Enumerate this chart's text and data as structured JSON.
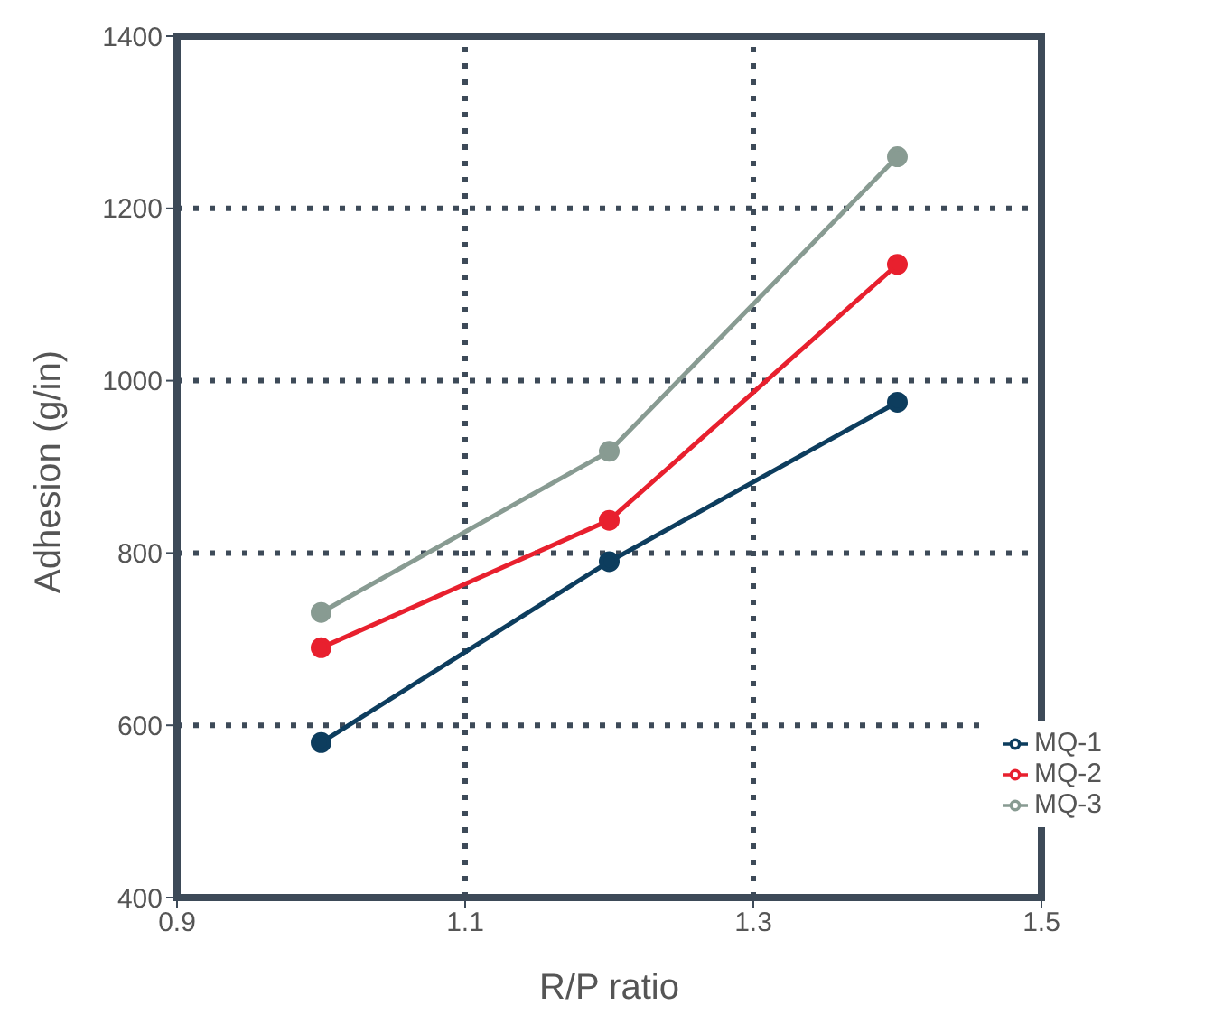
{
  "chart_data": {
    "type": "line",
    "xlabel": "R/P ratio",
    "ylabel": "Adhesion (g/in)",
    "x": [
      1.0,
      1.2,
      1.4
    ],
    "series": [
      {
        "name": "MQ-1",
        "color": "#0d3d5e",
        "values": [
          580,
          790,
          975
        ]
      },
      {
        "name": "MQ-2",
        "color": "#e8202e",
        "values": [
          690,
          838,
          1135
        ]
      },
      {
        "name": "MQ-3",
        "color": "#889b92",
        "values": [
          731,
          918,
          1260
        ]
      }
    ],
    "xlim": [
      0.9,
      1.5
    ],
    "xticks": [
      0.9,
      1.1,
      1.3,
      1.5
    ],
    "ylim": [
      400,
      1400
    ],
    "yticks": [
      400,
      600,
      800,
      1000,
      1200,
      1400
    ],
    "grid": true,
    "legend": "bottom right",
    "marker": "circle",
    "line_style": "solid"
  }
}
